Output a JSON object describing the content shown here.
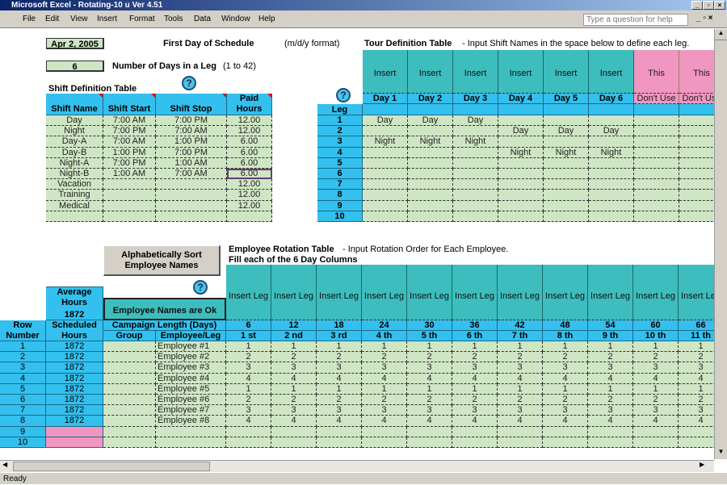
{
  "window": {
    "title": "Microsoft Excel - Rotating-10 u Ver 4.51",
    "help_placeholder": "Type a question for help"
  },
  "menu": [
    "File",
    "Edit",
    "View",
    "Insert",
    "Format",
    "Tools",
    "Data",
    "Window",
    "Help"
  ],
  "inputs": {
    "first_day": "Apr 2, 2005",
    "first_day_label": "First Day of Schedule",
    "first_day_hint": "(m/d/y format)",
    "days_in_leg": "6",
    "days_label": "Number of Days in a Leg",
    "days_hint": "(1 to 42)"
  },
  "help_icon": "?",
  "shift_table": {
    "title": "Shift Definition Table",
    "headers": [
      "Shift Name",
      "Shift Start",
      "Shift Stop",
      "Paid Hours"
    ],
    "rows": [
      [
        "Day",
        "7:00 AM",
        "7:00 PM",
        "12.00"
      ],
      [
        "Night",
        "7:00 PM",
        "7:00 AM",
        "12.00"
      ],
      [
        "Day-A",
        "7:00 AM",
        "1:00 PM",
        "6.00"
      ],
      [
        "Day-B",
        "1:00 PM",
        "7:00 PM",
        "6.00"
      ],
      [
        "Night-A",
        "7:00 PM",
        "1:00 AM",
        "6.00"
      ],
      [
        "Night-B",
        "1:00 AM",
        "7:00 AM",
        "6.00"
      ],
      [
        "Vacation",
        "",
        "",
        "12.00"
      ],
      [
        "Training",
        "",
        "",
        "12.00"
      ],
      [
        "Medical",
        "",
        "",
        "12.00"
      ],
      [
        "",
        "",
        "",
        ""
      ]
    ]
  },
  "tour_table": {
    "title": "Tour Definition Table",
    "subtitle": "- Input Shift Names in the space below to define each leg.",
    "leg_header": "Leg",
    "col_headers": [
      "Insert Shifts in this Column",
      "Insert Shifts in this Column",
      "Insert Shifts in this Column",
      "Insert Shifts in this Column",
      "Insert Shifts in this Column",
      "Insert Shifts in this Column",
      "This Column Will be Ignored",
      "This Column Will be Ignored"
    ],
    "day_labels": [
      "Day 1",
      "Day 2",
      "Day 3",
      "Day 4",
      "Day 5",
      "Day 6",
      "Don't Use",
      "Don't Use"
    ],
    "legs": [
      "1",
      "2",
      "3",
      "4",
      "5",
      "6",
      "7",
      "8",
      "9",
      "10"
    ],
    "rows": [
      [
        "Day",
        "Day",
        "Day",
        "",
        "",
        "",
        "",
        ""
      ],
      [
        "",
        "",
        "",
        "Day",
        "Day",
        "Day",
        "",
        ""
      ],
      [
        "Night",
        "Night",
        "Night",
        "",
        "",
        "",
        "",
        ""
      ],
      [
        "",
        "",
        "",
        "Night",
        "Night",
        "Night",
        "",
        ""
      ],
      [],
      [],
      [],
      [],
      [],
      []
    ]
  },
  "sort_button": "Alphabetically Sort Employee Names",
  "rotation_table": {
    "title": "Employee Rotation Table",
    "subtitle": "- Input Rotation Order for Each Employee.",
    "subtitle2": "Fill each of the 6 Day Columns",
    "avg_hours_label": "Average Hours",
    "avg_hours": "1872",
    "names_status": "Employee Names are Ok",
    "row_number_header": "Row Number",
    "scheduled_header": "Scheduled Hours",
    "campaign_label": "Campaign Length (Days)",
    "group_header": "Group",
    "employee_header": "Employee/Leg",
    "col_header": "Insert Leg Number in This Column",
    "campaign_days": [
      "6",
      "12",
      "18",
      "24",
      "30",
      "36",
      "42",
      "48",
      "54",
      "60",
      "66"
    ],
    "leg_ordinals": [
      "1 st",
      "2 nd",
      "3 rd",
      "4 th",
      "5 th",
      "6 th",
      "7 th",
      "8 th",
      "9 th",
      "10 th",
      "11 th"
    ],
    "rows": [
      {
        "n": "1",
        "hours": "1872",
        "name": "Employee #1",
        "legs": [
          "1",
          "1",
          "1",
          "1",
          "1",
          "1",
          "1",
          "1",
          "1",
          "1",
          "1"
        ]
      },
      {
        "n": "2",
        "hours": "1872",
        "name": "Employee #2",
        "legs": [
          "2",
          "2",
          "2",
          "2",
          "2",
          "2",
          "2",
          "2",
          "2",
          "2",
          "2"
        ]
      },
      {
        "n": "3",
        "hours": "1872",
        "name": "Employee #3",
        "legs": [
          "3",
          "3",
          "3",
          "3",
          "3",
          "3",
          "3",
          "3",
          "3",
          "3",
          "3"
        ]
      },
      {
        "n": "4",
        "hours": "1872",
        "name": "Employee #4",
        "legs": [
          "4",
          "4",
          "4",
          "4",
          "4",
          "4",
          "4",
          "4",
          "4",
          "4",
          "4"
        ]
      },
      {
        "n": "5",
        "hours": "1872",
        "name": "Employee #5",
        "legs": [
          "1",
          "1",
          "1",
          "1",
          "1",
          "1",
          "1",
          "1",
          "1",
          "1",
          "1"
        ]
      },
      {
        "n": "6",
        "hours": "1872",
        "name": "Employee #6",
        "legs": [
          "2",
          "2",
          "2",
          "2",
          "2",
          "2",
          "2",
          "2",
          "2",
          "2",
          "2"
        ]
      },
      {
        "n": "7",
        "hours": "1872",
        "name": "Employee #7",
        "legs": [
          "3",
          "3",
          "3",
          "3",
          "3",
          "3",
          "3",
          "3",
          "3",
          "3",
          "3"
        ]
      },
      {
        "n": "8",
        "hours": "1872",
        "name": "Employee #8",
        "legs": [
          "4",
          "4",
          "4",
          "4",
          "4",
          "4",
          "4",
          "4",
          "4",
          "4",
          "4"
        ]
      },
      {
        "n": "9",
        "hours": "",
        "name": "",
        "legs": []
      },
      {
        "n": "10",
        "hours": "",
        "name": "",
        "legs": []
      }
    ]
  },
  "status": "Ready",
  "colors": {
    "input_green": "#cfe6c4",
    "header_blue": "#33c0ee",
    "header_teal": "#3dbdbd",
    "ignored_pink": "#f096c0"
  }
}
